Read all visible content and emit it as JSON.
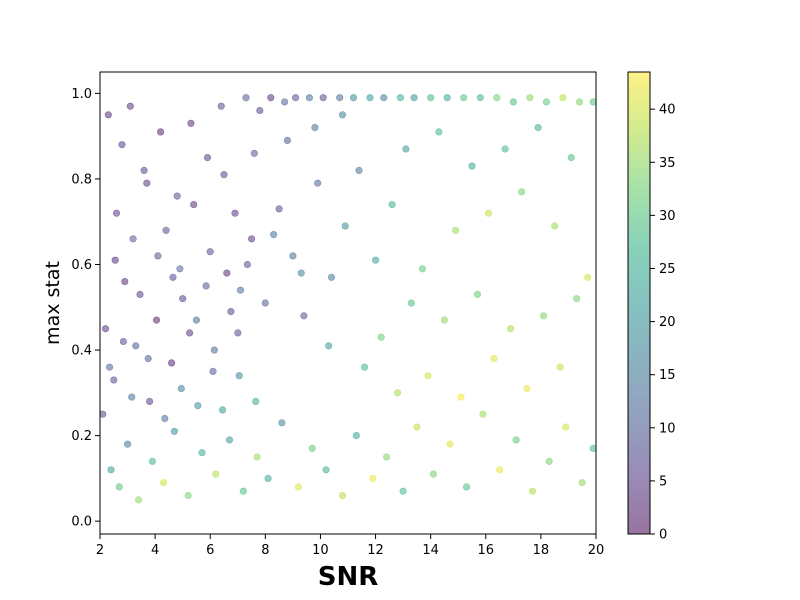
{
  "chart_data": {
    "type": "scatter",
    "title": "",
    "xlabel": "SNR",
    "ylabel": "max stat",
    "xlim": [
      2,
      20
    ],
    "ylim": [
      -0.03,
      1.05
    ],
    "x_ticks": [
      2,
      4,
      6,
      8,
      10,
      12,
      14,
      16,
      18,
      20
    ],
    "y_ticks": [
      0.0,
      0.2,
      0.4,
      0.6,
      0.8,
      1.0
    ],
    "x_tick_labels": [
      "2",
      "4",
      "6",
      "8",
      "10",
      "12",
      "14",
      "16",
      "18",
      "20"
    ],
    "y_tick_labels": [
      "0.0",
      "0.2",
      "0.4",
      "0.6",
      "0.8",
      "1.0"
    ],
    "grid": false,
    "colormap": "viridis",
    "marker_alpha": 0.5,
    "colorbar": {
      "range": [
        0,
        43.5
      ],
      "ticks": [
        0,
        5,
        10,
        15,
        20,
        25,
        30,
        35,
        40
      ],
      "tick_labels": [
        "0",
        "5",
        "10",
        "15",
        "20",
        "25",
        "30",
        "35",
        "40"
      ]
    },
    "point_count_description": "dense cloud of points; density decreases with SNR; high-SNR points cluster near max stat 1.0 or below 0.3",
    "series": [
      {
        "points": [
          [
            2.3,
            0.95,
            3
          ],
          [
            2.8,
            0.88,
            5
          ],
          [
            3.1,
            0.97,
            4
          ],
          [
            3.6,
            0.82,
            6
          ],
          [
            4.2,
            0.91,
            2
          ],
          [
            4.8,
            0.76,
            8
          ],
          [
            5.3,
            0.93,
            3
          ],
          [
            5.9,
            0.85,
            5
          ],
          [
            6.4,
            0.97,
            7
          ],
          [
            6.9,
            0.72,
            4
          ],
          [
            7.3,
            0.99,
            9
          ],
          [
            7.8,
            0.96,
            6
          ],
          [
            8.2,
            0.99,
            3
          ],
          [
            8.7,
            0.98,
            11
          ],
          [
            9.1,
            0.99,
            8
          ],
          [
            9.6,
            0.99,
            14
          ],
          [
            10.1,
            0.99,
            7
          ],
          [
            10.7,
            0.99,
            12
          ],
          [
            11.2,
            0.99,
            18
          ],
          [
            11.8,
            0.99,
            22
          ],
          [
            12.3,
            0.99,
            16
          ],
          [
            12.9,
            0.99,
            25
          ],
          [
            13.4,
            0.99,
            20
          ],
          [
            14.0,
            0.99,
            28
          ],
          [
            14.6,
            0.99,
            24
          ],
          [
            15.2,
            0.99,
            30
          ],
          [
            15.8,
            0.99,
            27
          ],
          [
            16.4,
            0.99,
            33
          ],
          [
            17.0,
            0.98,
            29
          ],
          [
            17.6,
            0.99,
            35
          ],
          [
            18.2,
            0.98,
            31
          ],
          [
            18.8,
            0.99,
            38
          ],
          [
            19.4,
            0.98,
            34
          ],
          [
            19.9,
            0.98,
            30
          ],
          [
            2.2,
            0.45,
            4
          ],
          [
            2.5,
            0.33,
            7
          ],
          [
            2.9,
            0.56,
            3
          ],
          [
            3.3,
            0.41,
            10
          ],
          [
            3.8,
            0.28,
            5
          ],
          [
            4.1,
            0.62,
            8
          ],
          [
            4.6,
            0.37,
            2
          ],
          [
            5.0,
            0.52,
            6
          ],
          [
            5.5,
            0.47,
            12
          ],
          [
            6.1,
            0.35,
            9
          ],
          [
            6.6,
            0.58,
            3
          ],
          [
            7.0,
            0.44,
            7
          ],
          [
            7.5,
            0.66,
            4
          ],
          [
            8.0,
            0.51,
            10
          ],
          [
            8.5,
            0.73,
            6
          ],
          [
            9.0,
            0.62,
            13
          ],
          [
            9.4,
            0.48,
            8
          ],
          [
            9.9,
            0.79,
            11
          ],
          [
            10.4,
            0.57,
            15
          ],
          [
            10.9,
            0.69,
            19
          ],
          [
            11.4,
            0.82,
            14
          ],
          [
            12.0,
            0.61,
            23
          ],
          [
            12.6,
            0.74,
            26
          ],
          [
            13.1,
            0.87,
            21
          ],
          [
            13.7,
            0.59,
            31
          ],
          [
            14.3,
            0.91,
            27
          ],
          [
            14.9,
            0.68,
            36
          ],
          [
            15.5,
            0.83,
            24
          ],
          [
            16.1,
            0.72,
            39
          ],
          [
            16.7,
            0.87,
            28
          ],
          [
            17.3,
            0.77,
            33
          ],
          [
            17.9,
            0.92,
            26
          ],
          [
            18.5,
            0.69,
            36
          ],
          [
            19.1,
            0.85,
            29
          ],
          [
            19.7,
            0.57,
            40
          ],
          [
            2.4,
            0.12,
            22
          ],
          [
            2.7,
            0.08,
            30
          ],
          [
            3.0,
            0.18,
            15
          ],
          [
            3.4,
            0.05,
            35
          ],
          [
            3.9,
            0.14,
            27
          ],
          [
            4.3,
            0.09,
            40
          ],
          [
            4.7,
            0.21,
            19
          ],
          [
            5.2,
            0.06,
            33
          ],
          [
            5.7,
            0.16,
            25
          ],
          [
            6.2,
            0.11,
            38
          ],
          [
            6.7,
            0.19,
            21
          ],
          [
            7.2,
            0.07,
            29
          ],
          [
            7.7,
            0.15,
            36
          ],
          [
            8.1,
            0.1,
            24
          ],
          [
            8.6,
            0.23,
            17
          ],
          [
            9.2,
            0.08,
            41
          ],
          [
            9.7,
            0.17,
            31
          ],
          [
            10.2,
            0.12,
            26
          ],
          [
            10.8,
            0.06,
            38
          ],
          [
            11.3,
            0.2,
            23
          ],
          [
            11.9,
            0.1,
            42
          ],
          [
            12.4,
            0.15,
            34
          ],
          [
            13.0,
            0.07,
            28
          ],
          [
            13.5,
            0.22,
            39
          ],
          [
            14.1,
            0.11,
            33
          ],
          [
            14.7,
            0.18,
            41
          ],
          [
            15.3,
            0.08,
            29
          ],
          [
            15.9,
            0.25,
            36
          ],
          [
            16.5,
            0.12,
            42
          ],
          [
            17.1,
            0.19,
            31
          ],
          [
            17.7,
            0.07,
            38
          ],
          [
            18.3,
            0.14,
            33
          ],
          [
            18.9,
            0.22,
            40
          ],
          [
            19.5,
            0.09,
            35
          ],
          [
            19.9,
            0.17,
            28
          ],
          [
            2.6,
            0.72,
            5
          ],
          [
            3.2,
            0.66,
            9
          ],
          [
            3.7,
            0.79,
            4
          ],
          [
            4.4,
            0.68,
            7
          ],
          [
            4.9,
            0.59,
            11
          ],
          [
            5.4,
            0.74,
            3
          ],
          [
            6.0,
            0.63,
            8
          ],
          [
            6.5,
            0.81,
            6
          ],
          [
            7.1,
            0.54,
            12
          ],
          [
            7.6,
            0.86,
            9
          ],
          [
            8.3,
            0.67,
            14
          ],
          [
            8.8,
            0.89,
            10
          ],
          [
            9.3,
            0.58,
            17
          ],
          [
            9.8,
            0.92,
            13
          ],
          [
            10.3,
            0.41,
            21
          ],
          [
            10.8,
            0.95,
            16
          ],
          [
            11.6,
            0.36,
            27
          ],
          [
            12.2,
            0.43,
            32
          ],
          [
            12.8,
            0.3,
            37
          ],
          [
            13.3,
            0.51,
            29
          ],
          [
            13.9,
            0.34,
            40
          ],
          [
            14.5,
            0.47,
            35
          ],
          [
            15.1,
            0.29,
            43
          ],
          [
            15.7,
            0.53,
            32
          ],
          [
            16.3,
            0.38,
            41
          ],
          [
            16.9,
            0.45,
            37
          ],
          [
            17.5,
            0.31,
            42
          ],
          [
            18.1,
            0.48,
            34
          ],
          [
            18.7,
            0.36,
            39
          ],
          [
            19.3,
            0.52,
            33
          ],
          [
            2.1,
            0.25,
            6
          ],
          [
            2.35,
            0.36,
            11
          ],
          [
            2.55,
            0.61,
            3
          ],
          [
            2.85,
            0.42,
            8
          ],
          [
            3.15,
            0.29,
            14
          ],
          [
            3.45,
            0.53,
            5
          ],
          [
            3.75,
            0.38,
            10
          ],
          [
            4.05,
            0.47,
            2
          ],
          [
            4.35,
            0.24,
            13
          ],
          [
            4.65,
            0.57,
            7
          ],
          [
            4.95,
            0.31,
            16
          ],
          [
            5.25,
            0.44,
            4
          ],
          [
            5.55,
            0.27,
            19
          ],
          [
            5.85,
            0.55,
            9
          ],
          [
            6.15,
            0.4,
            12
          ],
          [
            6.45,
            0.26,
            21
          ],
          [
            6.75,
            0.49,
            6
          ],
          [
            7.05,
            0.34,
            17
          ],
          [
            7.35,
            0.6,
            8
          ],
          [
            7.65,
            0.28,
            24
          ]
        ]
      }
    ]
  }
}
